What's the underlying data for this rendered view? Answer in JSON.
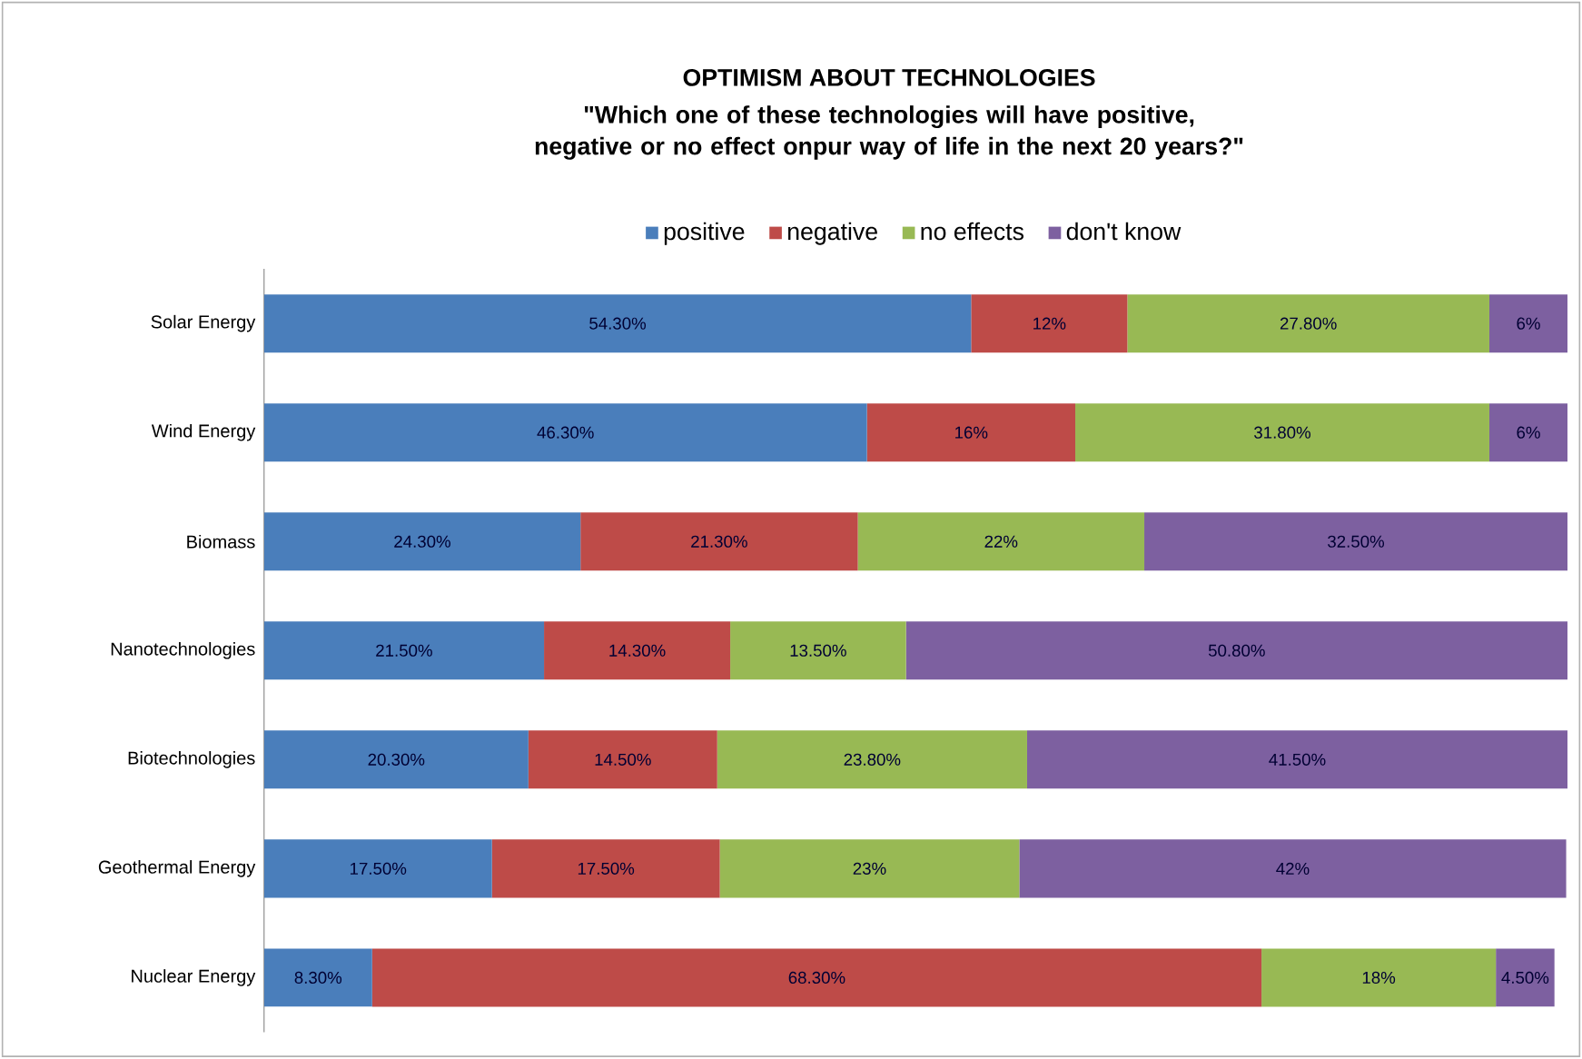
{
  "chart_data": {
    "type": "bar",
    "orientation": "horizontal",
    "stacked": true,
    "legend": "top",
    "title": "OPTIMISM ABOUT TECHNOLOGIES",
    "subtitle": "\"Which one of these technologies will have positive, negative or no effect onpur way of life in the next 20 years?\"",
    "categories": [
      "Solar Energy",
      "Wind Energy",
      "Biomass",
      "Nanotechnologies",
      "Biotechnologies",
      "Geothermal Energy",
      "Nuclear Energy"
    ],
    "series": [
      {
        "name": "positive",
        "color": "#4a7ebb",
        "values": [
          54.3,
          46.3,
          24.3,
          21.5,
          20.3,
          17.5,
          8.3
        ],
        "value_labels": [
          "54.30%",
          "46.30%",
          "24.30%",
          "21.50%",
          "20.30%",
          "17.50%",
          "8.30%"
        ]
      },
      {
        "name": "negative",
        "color": "#be4b48",
        "values": [
          12,
          16,
          21.3,
          14.3,
          14.5,
          17.5,
          68.3
        ],
        "value_labels": [
          "12%",
          "16%",
          "21.30%",
          "14.30%",
          "14.50%",
          "17.50%",
          "68.30%"
        ]
      },
      {
        "name": "no effects",
        "color": "#98b954",
        "values": [
          27.8,
          31.8,
          22,
          13.5,
          23.8,
          23,
          18
        ],
        "value_labels": [
          "27.80%",
          "31.80%",
          "22%",
          "13.50%",
          "23.80%",
          "23%",
          "18%"
        ]
      },
      {
        "name": "don't know",
        "color": "#7d60a0",
        "values": [
          6,
          6,
          32.5,
          50.8,
          41.5,
          42,
          4.5
        ],
        "value_labels": [
          "6%",
          "6%",
          "32.50%",
          "50.80%",
          "41.50%",
          "42%",
          "4.50%"
        ]
      }
    ]
  }
}
